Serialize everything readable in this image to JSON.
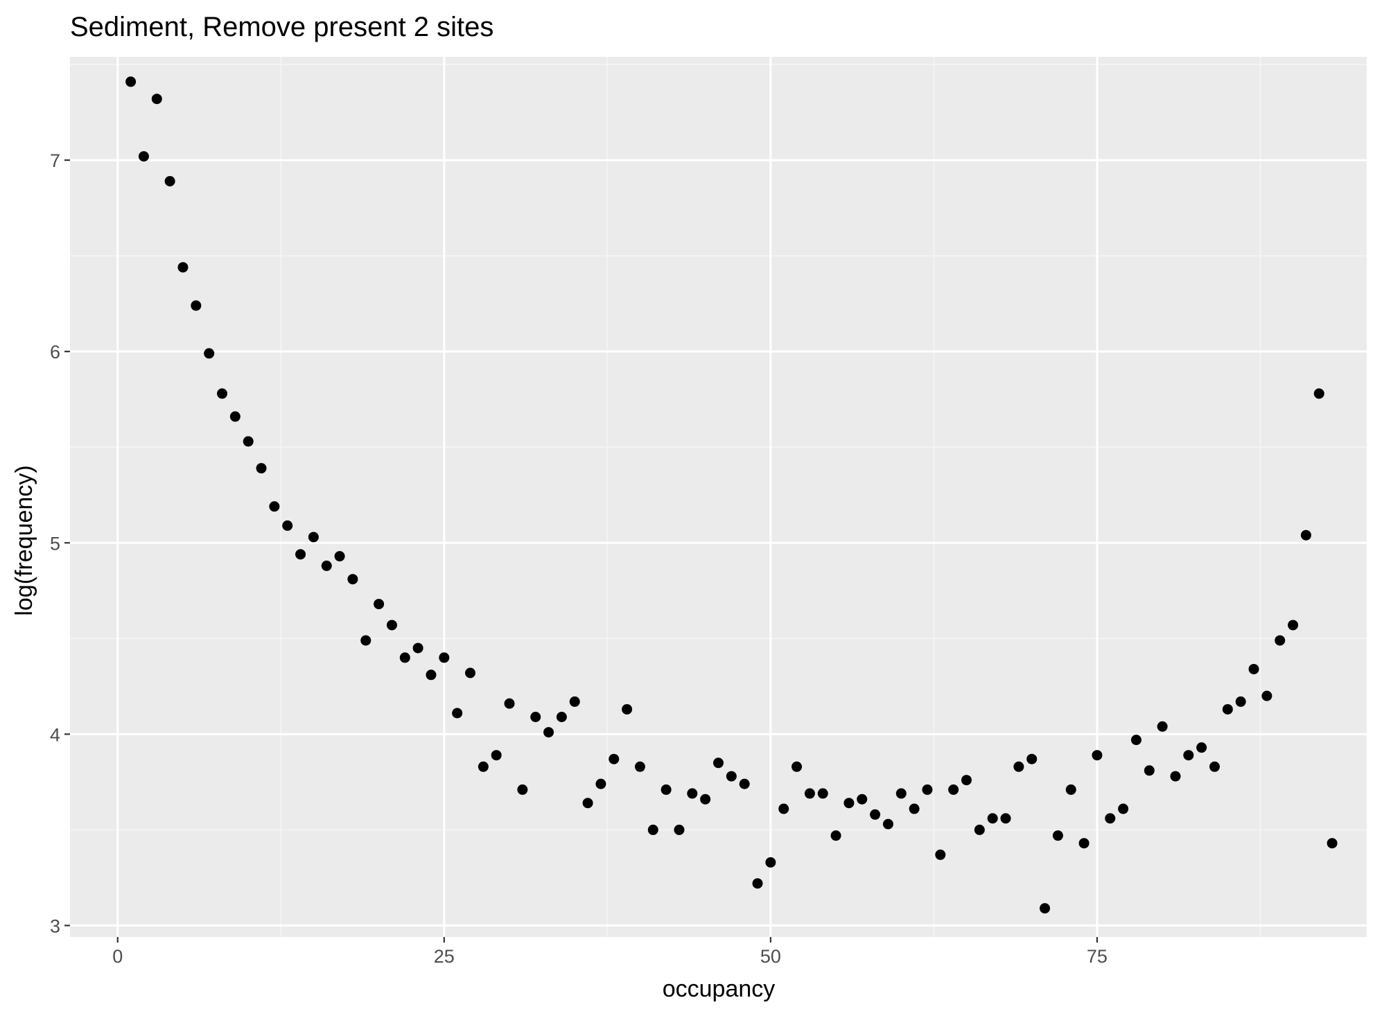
{
  "chart_data": {
    "type": "scatter",
    "title": "Sediment, Remove present 2 sites",
    "xlabel": "occupancy",
    "ylabel": "log(frequency)",
    "xlim": [
      -3.65,
      95.65
    ],
    "ylim": [
      2.94,
      7.54
    ],
    "x_ticks": [
      0,
      25,
      50,
      75
    ],
    "x_tick_labels": [
      "0",
      "25",
      "50",
      "75"
    ],
    "y_ticks": [
      3,
      4,
      5,
      6,
      7
    ],
    "y_tick_labels": [
      "3",
      "4",
      "5",
      "6",
      "7"
    ],
    "grid": true,
    "legend": "none",
    "colors": {
      "panel_background": "#ebebeb",
      "grid_major": "#ffffff",
      "grid_minor": "#f5f5f5",
      "point": "#000000",
      "tick_label": "#4d4d4d",
      "tick_mark": "#333333",
      "text": "#000000"
    },
    "points": [
      {
        "x": 1,
        "y": 7.41
      },
      {
        "x": 2,
        "y": 7.02
      },
      {
        "x": 3,
        "y": 7.32
      },
      {
        "x": 4,
        "y": 6.89
      },
      {
        "x": 5,
        "y": 6.44
      },
      {
        "x": 6,
        "y": 6.24
      },
      {
        "x": 7,
        "y": 5.99
      },
      {
        "x": 8,
        "y": 5.78
      },
      {
        "x": 9,
        "y": 5.66
      },
      {
        "x": 10,
        "y": 5.53
      },
      {
        "x": 11,
        "y": 5.39
      },
      {
        "x": 12,
        "y": 5.19
      },
      {
        "x": 13,
        "y": 5.09
      },
      {
        "x": 14,
        "y": 4.94
      },
      {
        "x": 15,
        "y": 5.03
      },
      {
        "x": 16,
        "y": 4.88
      },
      {
        "x": 17,
        "y": 4.93
      },
      {
        "x": 18,
        "y": 4.81
      },
      {
        "x": 19,
        "y": 4.49
      },
      {
        "x": 20,
        "y": 4.68
      },
      {
        "x": 21,
        "y": 4.57
      },
      {
        "x": 22,
        "y": 4.4
      },
      {
        "x": 23,
        "y": 4.45
      },
      {
        "x": 24,
        "y": 4.31
      },
      {
        "x": 25,
        "y": 4.4
      },
      {
        "x": 26,
        "y": 4.11
      },
      {
        "x": 27,
        "y": 4.32
      },
      {
        "x": 28,
        "y": 3.83
      },
      {
        "x": 29,
        "y": 3.89
      },
      {
        "x": 30,
        "y": 4.16
      },
      {
        "x": 31,
        "y": 3.71
      },
      {
        "x": 32,
        "y": 4.09
      },
      {
        "x": 33,
        "y": 4.01
      },
      {
        "x": 34,
        "y": 4.09
      },
      {
        "x": 35,
        "y": 4.17
      },
      {
        "x": 36,
        "y": 3.64
      },
      {
        "x": 37,
        "y": 3.74
      },
      {
        "x": 38,
        "y": 3.87
      },
      {
        "x": 39,
        "y": 4.13
      },
      {
        "x": 40,
        "y": 3.83
      },
      {
        "x": 41,
        "y": 3.5
      },
      {
        "x": 42,
        "y": 3.71
      },
      {
        "x": 43,
        "y": 3.5
      },
      {
        "x": 44,
        "y": 3.69
      },
      {
        "x": 45,
        "y": 3.66
      },
      {
        "x": 46,
        "y": 3.85
      },
      {
        "x": 47,
        "y": 3.78
      },
      {
        "x": 48,
        "y": 3.74
      },
      {
        "x": 49,
        "y": 3.22
      },
      {
        "x": 50,
        "y": 3.33
      },
      {
        "x": 51,
        "y": 3.61
      },
      {
        "x": 52,
        "y": 3.83
      },
      {
        "x": 53,
        "y": 3.69
      },
      {
        "x": 54,
        "y": 3.69
      },
      {
        "x": 55,
        "y": 3.47
      },
      {
        "x": 56,
        "y": 3.64
      },
      {
        "x": 57,
        "y": 3.66
      },
      {
        "x": 58,
        "y": 3.58
      },
      {
        "x": 59,
        "y": 3.53
      },
      {
        "x": 60,
        "y": 3.69
      },
      {
        "x": 61,
        "y": 3.61
      },
      {
        "x": 62,
        "y": 3.71
      },
      {
        "x": 63,
        "y": 3.37
      },
      {
        "x": 64,
        "y": 3.71
      },
      {
        "x": 65,
        "y": 3.76
      },
      {
        "x": 66,
        "y": 3.5
      },
      {
        "x": 67,
        "y": 3.56
      },
      {
        "x": 68,
        "y": 3.56
      },
      {
        "x": 69,
        "y": 3.83
      },
      {
        "x": 70,
        "y": 3.87
      },
      {
        "x": 71,
        "y": 3.09
      },
      {
        "x": 72,
        "y": 3.47
      },
      {
        "x": 73,
        "y": 3.71
      },
      {
        "x": 74,
        "y": 3.43
      },
      {
        "x": 75,
        "y": 3.89
      },
      {
        "x": 76,
        "y": 3.56
      },
      {
        "x": 77,
        "y": 3.61
      },
      {
        "x": 78,
        "y": 3.97
      },
      {
        "x": 79,
        "y": 3.81
      },
      {
        "x": 80,
        "y": 4.04
      },
      {
        "x": 81,
        "y": 3.78
      },
      {
        "x": 82,
        "y": 3.89
      },
      {
        "x": 83,
        "y": 3.93
      },
      {
        "x": 84,
        "y": 3.83
      },
      {
        "x": 85,
        "y": 4.13
      },
      {
        "x": 86,
        "y": 4.17
      },
      {
        "x": 87,
        "y": 4.34
      },
      {
        "x": 88,
        "y": 4.2
      },
      {
        "x": 89,
        "y": 4.49
      },
      {
        "x": 90,
        "y": 4.57
      },
      {
        "x": 91,
        "y": 5.04
      },
      {
        "x": 92,
        "y": 5.78
      },
      {
        "x": 93,
        "y": 3.43
      }
    ]
  }
}
